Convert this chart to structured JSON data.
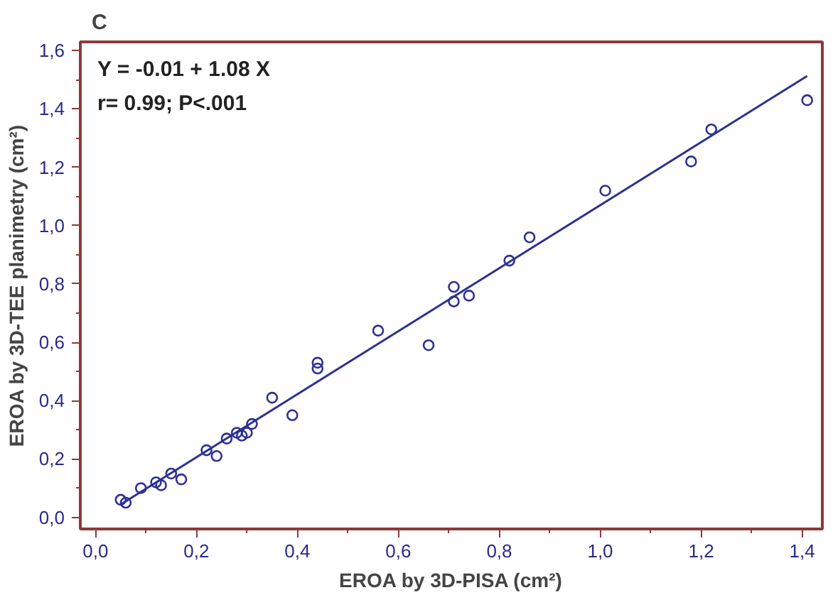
{
  "chart_data": {
    "type": "scatter",
    "title": "C",
    "xlabel": "EROA by 3D-PISA (cm²)",
    "ylabel": "EROA by 3D-TEE planimetry (cm²)",
    "annotations": [
      "Y = -0.01  + 1.08 X",
      "r= 0.99; P<.001"
    ],
    "xlim": [
      -0.03,
      1.44
    ],
    "ylim": [
      -0.04,
      1.63
    ],
    "xticks": [
      {
        "value": 0,
        "label": "0,0"
      },
      {
        "value": 0.2,
        "label": "0,2"
      },
      {
        "value": 0.4,
        "label": "0,4"
      },
      {
        "value": 0.6,
        "label": "0,6"
      },
      {
        "value": 0.8,
        "label": "0,8"
      },
      {
        "value": 1.0,
        "label": "1,0"
      },
      {
        "value": 1.2,
        "label": "1,2"
      },
      {
        "value": 1.4,
        "label": "1,4"
      }
    ],
    "yticks": [
      {
        "value": 0,
        "label": "0,0"
      },
      {
        "value": 0.2,
        "label": "0,2"
      },
      {
        "value": 0.4,
        "label": "0,4"
      },
      {
        "value": 0.6,
        "label": "0,6"
      },
      {
        "value": 0.8,
        "label": "0,8"
      },
      {
        "value": 1.0,
        "label": "1,0"
      },
      {
        "value": 1.2,
        "label": "1,2"
      },
      {
        "value": 1.4,
        "label": "1,4"
      },
      {
        "value": 1.6,
        "label": "1,6"
      }
    ],
    "grid": false,
    "series": [
      {
        "marker": "circle",
        "color": "#2e3192",
        "x": [
          0.05,
          0.06,
          0.09,
          0.12,
          0.13,
          0.15,
          0.17,
          0.22,
          0.24,
          0.26,
          0.28,
          0.29,
          0.3,
          0.31,
          0.35,
          0.39,
          0.44,
          0.44,
          0.56,
          0.66,
          0.71,
          0.71,
          0.74,
          0.82,
          0.86,
          1.01,
          1.18,
          1.22,
          1.41
        ],
        "values": [
          0.06,
          0.05,
          0.1,
          0.12,
          0.11,
          0.15,
          0.13,
          0.23,
          0.21,
          0.27,
          0.29,
          0.28,
          0.29,
          0.32,
          0.41,
          0.35,
          0.53,
          0.51,
          0.64,
          0.59,
          0.79,
          0.74,
          0.76,
          0.88,
          0.96,
          1.12,
          1.22,
          1.33,
          1.43
        ]
      },
      {
        "type": "line",
        "color": "#2e3192",
        "x": [
          0.05,
          1.41
        ],
        "values": [
          0.044,
          1.513
        ]
      }
    ]
  }
}
